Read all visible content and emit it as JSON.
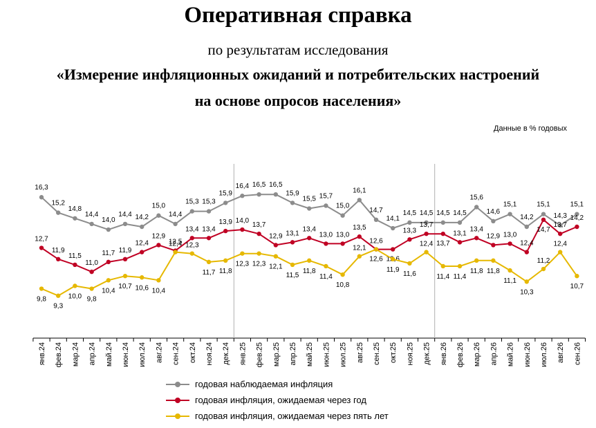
{
  "header": {
    "title": "Оперативная справка",
    "subtitle1": "по результатам исследования",
    "subtitle2": "«Измерение инфляционных ожиданий и потребительских настроений",
    "subtitle3": "на основе опросов населения»",
    "units": "Данные в % годовых"
  },
  "chart_data": {
    "type": "line",
    "x": [
      "янв.24",
      "фев.24",
      "мар.24",
      "апр.24",
      "май.24",
      "июн.24",
      "июл.24",
      "авг.24",
      "сен.24",
      "окт.24",
      "ноя.24",
      "дек.24",
      "янв.25",
      "фев.25",
      "мар.25",
      "апр.25",
      "май.25",
      "июн.25",
      "июл.25",
      "авг.25",
      "сен.25",
      "окт.25",
      "ноя.25",
      "дек.25",
      "янв.26",
      "фев.26",
      "мар.26",
      "апр.26",
      "май.26",
      "июн.26",
      "июл.26",
      "авг.26",
      "сен.26"
    ],
    "series": [
      {
        "name": "годовая наблюдаемая  инфляция",
        "color": "#8c8c8c",
        "values": [
          16.3,
          15.2,
          14.8,
          14.4,
          14.0,
          14.4,
          14.2,
          15.0,
          14.4,
          15.3,
          15.3,
          15.9,
          16.4,
          16.5,
          16.5,
          15.9,
          15.5,
          15.7,
          15.0,
          16.1,
          14.7,
          14.1,
          14.5,
          14.5,
          14.5,
          14.5,
          15.6,
          14.6,
          15.1,
          14.2,
          15.1,
          14.3,
          15.1
        ],
        "labels": [
          "16,3",
          "15,2",
          "14,8",
          "14,4",
          "14,0",
          "14,4",
          "14,2",
          "15,0",
          "14,4",
          "15,3",
          "15,3",
          "15,9",
          "16,4",
          "16,5",
          "16,5",
          "15,9",
          "15,5",
          "15,7",
          "15,0",
          "16,1",
          "14,7",
          "14,1",
          "14,5",
          "14,5",
          "14,5",
          "14,5",
          "15,6",
          "14,6",
          "15,1",
          "14,2",
          "15,1",
          "14,3",
          "15,1"
        ]
      },
      {
        "name": "годовая инфляция,  ожидаемая через год",
        "color": "#c00023",
        "values": [
          12.7,
          11.9,
          11.5,
          11.0,
          11.7,
          11.9,
          12.4,
          12.9,
          12.5,
          13.4,
          13.4,
          13.9,
          14.0,
          13.7,
          12.9,
          13.1,
          13.4,
          13.0,
          13.0,
          13.5,
          12.6,
          12.6,
          13.3,
          13.7,
          13.7,
          13.1,
          13.4,
          12.9,
          13.0,
          12.4,
          14.7,
          13.7,
          14.2
        ],
        "labels": [
          "12,7",
          "11,9",
          "11,5",
          "11,0",
          "11,7",
          "11,9",
          "12,4",
          "12,9",
          "12,5",
          "13,4",
          "13,4",
          "13,9",
          "14,0",
          "13,7",
          "12,9",
          "13,1",
          "13,4",
          "13,0",
          "13,0",
          "13,5",
          "12,6",
          "12,6",
          "13,3",
          "13,7",
          "13,7",
          "13,1",
          "13,4",
          "12,9",
          "13,0",
          "12,4",
          "14,7",
          "13,7",
          "14,2"
        ]
      },
      {
        "name": "годовая инфляция,  ожидаемая через пять лет",
        "color": "#e6b800",
        "values": [
          9.8,
          9.3,
          10.0,
          9.8,
          10.4,
          10.7,
          10.6,
          10.4,
          12.4,
          12.3,
          11.7,
          11.8,
          12.3,
          12.3,
          12.1,
          11.5,
          11.8,
          11.4,
          10.8,
          12.1,
          12.6,
          11.9,
          11.6,
          12.4,
          11.4,
          11.4,
          11.8,
          11.8,
          11.1,
          10.3,
          11.2,
          12.4,
          10.7
        ],
        "labels": [
          "9,8",
          "9,3",
          "10,0",
          "9,8",
          "10,4",
          "10,7",
          "10,6",
          "10,4",
          "12,4",
          "12,3",
          "11,7",
          "11,8",
          "12,3",
          "12,3",
          "12,1",
          "11,5",
          "11,8",
          "11,4",
          "10,8",
          "12,1",
          "12,6",
          "11,9",
          "11,6",
          "12,4",
          "11,4",
          "11,4",
          "11,8",
          "11,8",
          "11,1",
          "10,3",
          "11,2",
          "12,4",
          "10,7"
        ]
      }
    ],
    "year_dividers_before": [
      "янв.25",
      "янв.26"
    ],
    "ylim": [
      8.5,
      17.0
    ],
    "grid": false,
    "legend_position": "bottom"
  }
}
